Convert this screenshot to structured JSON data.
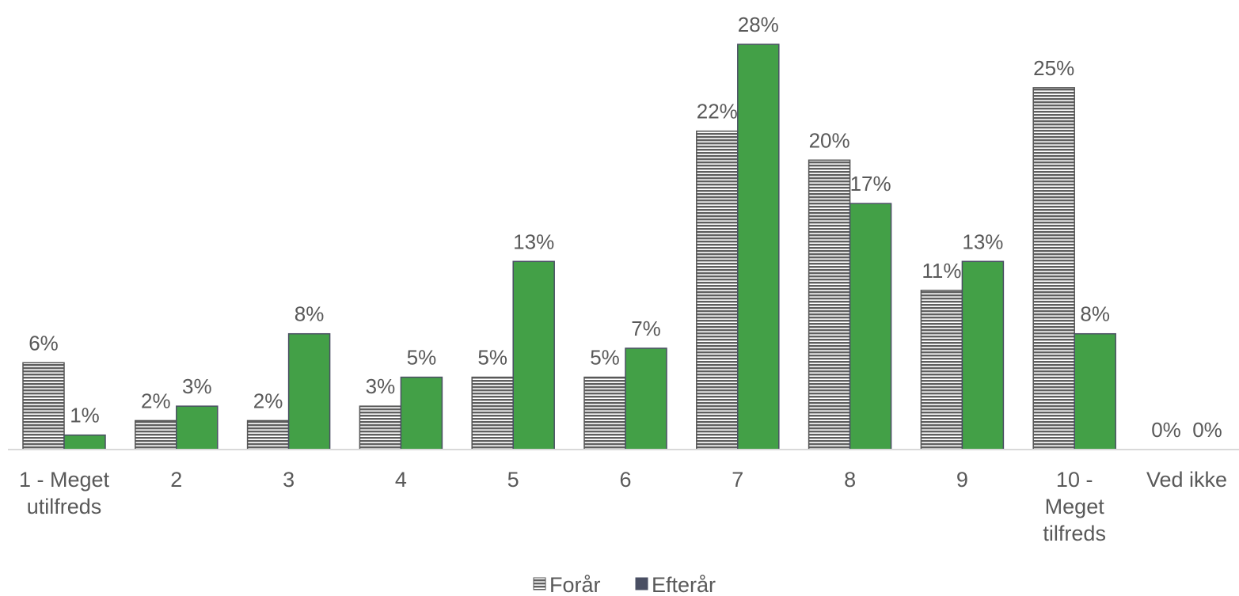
{
  "chart_data": {
    "type": "bar",
    "categories": [
      [
        "1 - Meget",
        "utilfreds"
      ],
      [
        "2"
      ],
      [
        "3"
      ],
      [
        "4"
      ],
      [
        "5"
      ],
      [
        "6"
      ],
      [
        "7"
      ],
      [
        "8"
      ],
      [
        "9"
      ],
      [
        "10 -",
        "Meget",
        "tilfreds"
      ],
      [
        "Ved ikke"
      ]
    ],
    "series": [
      {
        "name": "Forår",
        "values": [
          6,
          2,
          2,
          3,
          5,
          5,
          22,
          20,
          11,
          25,
          0
        ],
        "labels": [
          "6%",
          "2%",
          "2%",
          "3%",
          "5%",
          "5%",
          "22%",
          "20%",
          "11%",
          "25%",
          "0%"
        ],
        "color": "#6b6b6b",
        "pattern": "horizontal-stripes"
      },
      {
        "name": "Efterår",
        "values": [
          1,
          3,
          8,
          5,
          13,
          7,
          28,
          17,
          13,
          8,
          0
        ],
        "labels": [
          "1%",
          "3%",
          "8%",
          "5%",
          "13%",
          "7%",
          "28%",
          "17%",
          "13%",
          "8%",
          "0%"
        ],
        "color": "#43a047",
        "legend_color": "#4a4f63"
      }
    ],
    "ylim": [
      0,
      28
    ],
    "grid": false,
    "legend_position": "bottom",
    "text_color": "#595959",
    "axis_color": "#d9d9d9"
  }
}
